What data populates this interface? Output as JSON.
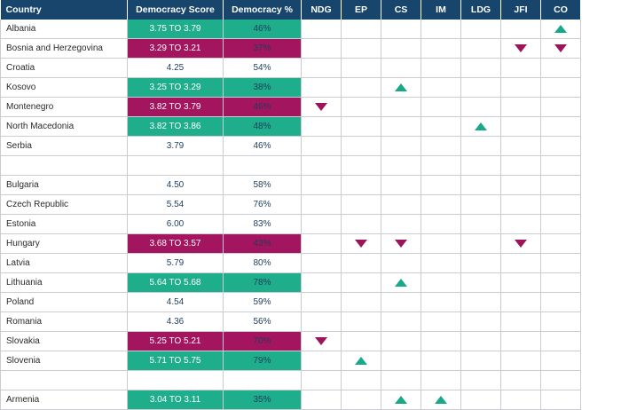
{
  "header": [
    "Country",
    "Democracy Score",
    "Democracy %",
    "NDG",
    "EP",
    "CS",
    "IM",
    "LDG",
    "JFI",
    "CO"
  ],
  "rows": [
    {
      "country": "Albania",
      "score": "3.75 TO 3.79",
      "pct": "46%",
      "hl": "green",
      "ind": [
        "",
        "",
        "",
        "",
        "",
        "",
        "up"
      ]
    },
    {
      "country": "Bosnia and Herzegovina",
      "score": "3.29 TO 3.21",
      "pct": "37%",
      "hl": "magenta",
      "ind": [
        "",
        "",
        "",
        "",
        "",
        "down",
        "down"
      ]
    },
    {
      "country": "Croatia",
      "score": "4.25",
      "pct": "54%",
      "hl": "",
      "ind": [
        "",
        "",
        "",
        "",
        "",
        "",
        ""
      ]
    },
    {
      "country": "Kosovo",
      "score": "3.25 TO 3.29",
      "pct": "38%",
      "hl": "green",
      "ind": [
        "",
        "",
        "up",
        "",
        "",
        "",
        ""
      ]
    },
    {
      "country": "Montenegro",
      "score": "3.82 TO 3.79",
      "pct": "46%",
      "hl": "magenta",
      "ind": [
        "down",
        "",
        "",
        "",
        "",
        "",
        ""
      ]
    },
    {
      "country": "North Macedonia",
      "score": "3.82 TO 3.86",
      "pct": "48%",
      "hl": "green",
      "ind": [
        "",
        "",
        "",
        "",
        "up",
        "",
        ""
      ]
    },
    {
      "country": "Serbia",
      "score": "3.79",
      "pct": "46%",
      "hl": "",
      "ind": [
        "",
        "",
        "",
        "",
        "",
        "",
        ""
      ]
    },
    {
      "spacer": true
    },
    {
      "country": "Bulgaria",
      "score": "4.50",
      "pct": "58%",
      "hl": "",
      "ind": [
        "",
        "",
        "",
        "",
        "",
        "",
        ""
      ]
    },
    {
      "country": "Czech Republic",
      "score": "5.54",
      "pct": "76%",
      "hl": "",
      "ind": [
        "",
        "",
        "",
        "",
        "",
        "",
        ""
      ]
    },
    {
      "country": "Estonia",
      "score": "6.00",
      "pct": "83%",
      "hl": "",
      "ind": [
        "",
        "",
        "",
        "",
        "",
        "",
        ""
      ]
    },
    {
      "country": "Hungary",
      "score": "3.68 TO 3.57",
      "pct": "43%",
      "hl": "magenta",
      "ind": [
        "",
        "down",
        "down",
        "",
        "",
        "down",
        ""
      ]
    },
    {
      "country": "Latvia",
      "score": "5.79",
      "pct": "80%",
      "hl": "",
      "ind": [
        "",
        "",
        "",
        "",
        "",
        "",
        ""
      ]
    },
    {
      "country": "Lithuania",
      "score": "5.64 TO 5.68",
      "pct": "78%",
      "hl": "green",
      "ind": [
        "",
        "",
        "up",
        "",
        "",
        "",
        ""
      ]
    },
    {
      "country": "Poland",
      "score": "4.54",
      "pct": "59%",
      "hl": "",
      "ind": [
        "",
        "",
        "",
        "",
        "",
        "",
        ""
      ]
    },
    {
      "country": "Romania",
      "score": "4.36",
      "pct": "56%",
      "hl": "",
      "ind": [
        "",
        "",
        "",
        "",
        "",
        "",
        ""
      ]
    },
    {
      "country": "Slovakia",
      "score": "5.25 TO 5.21",
      "pct": "70%",
      "hl": "magenta",
      "ind": [
        "down",
        "",
        "",
        "",
        "",
        "",
        ""
      ]
    },
    {
      "country": "Slovenia",
      "score": "5.71 TO 5.75",
      "pct": "79%",
      "hl": "green",
      "ind": [
        "",
        "up",
        "",
        "",
        "",
        "",
        ""
      ]
    },
    {
      "spacer": true
    },
    {
      "country": "Armenia",
      "score": "3.04 TO 3.11",
      "pct": "35%",
      "hl": "green",
      "ind": [
        "",
        "",
        "up",
        "up",
        "",
        "",
        ""
      ]
    }
  ],
  "colors": {
    "header_bg": "#17456b",
    "improve": "#1fae8c",
    "decline": "#a3155e"
  },
  "icons": {
    "up": "triangle-up-icon",
    "down": "triangle-down-icon"
  }
}
